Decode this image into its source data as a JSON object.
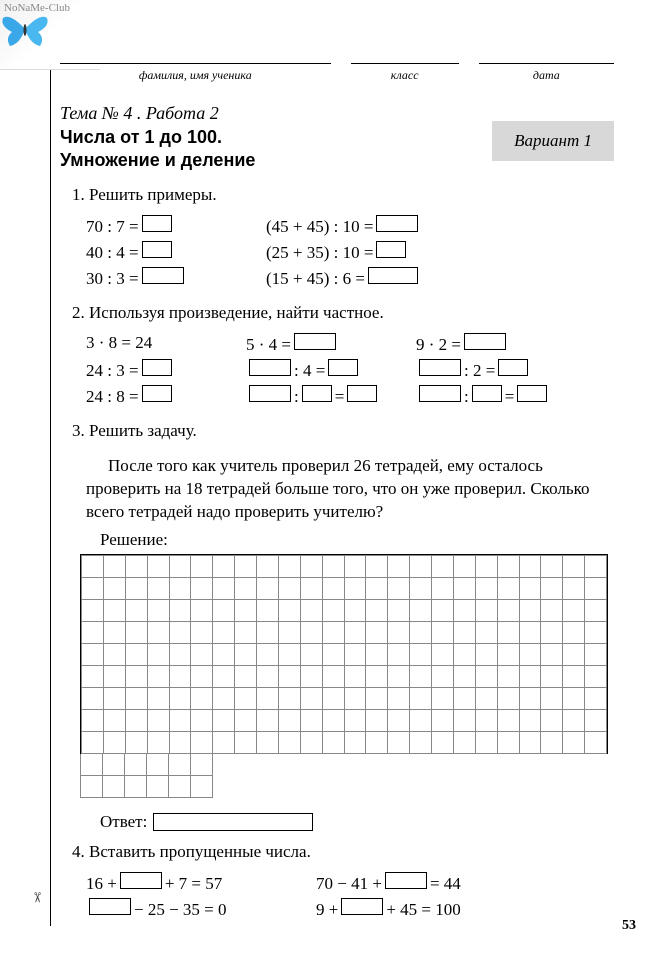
{
  "watermark": "NoNaMe-Club",
  "header": {
    "name_label": "фамилия, имя ученика",
    "class_label": "класс",
    "date_label": "дата"
  },
  "topic": {
    "theme": "Тема № 4 . Работа 2",
    "title_line1": "Числа от 1 до 100.",
    "title_line2": "Умножение и деление",
    "variant": "Вариант 1"
  },
  "task1": {
    "title": "1. Решить примеры.",
    "left": [
      "70 : 7 =",
      "40 : 4 =",
      "30 : 3 ="
    ],
    "right": [
      "(45 + 45) : 10 =",
      "(25 + 35) : 10 =",
      "(15 + 45) : 6 ="
    ]
  },
  "task2": {
    "title": "2. Используя произведение, найти частное.",
    "c1": {
      "a": "3 · 8 = 24",
      "b": "24 : 3 =",
      "c": "24 : 8 ="
    },
    "c2": {
      "a": "5 · 4 =",
      "b_mid": " : 4 =",
      "c_mid": " : "
    },
    "c3": {
      "a": "9 · 2 =",
      "b_mid": " : 2 =",
      "c_mid": " : "
    }
  },
  "task3": {
    "title": "3. Решить задачу.",
    "story": "После того как учитель проверил 26 тетрадей, ему осталось проверить на 18 тетрадей больше того, что он уже проверил. Сколько всего тетрадей надо проверить учителю?",
    "solution_label": "Решение:",
    "answer_label": "Ответ:",
    "grid": {
      "cols": 24,
      "rows_full": 9,
      "rows_tail": 2,
      "tail_cols": 6
    }
  },
  "task4": {
    "title": "4. Вставить пропущенные числа.",
    "r1": {
      "left_a": "16 +",
      "left_b": "+ 7 = 57",
      "right_a": "70 − 41 +",
      "right_b": "= 44"
    },
    "r2": {
      "left_a": "",
      "left_b": "− 25 − 35 = 0",
      "right_a": "9 +",
      "right_b": "+ 45 = 100"
    }
  },
  "page_number": "53",
  "colors": {
    "variant_bg": "#d8d8d8",
    "grid_border": "#888888",
    "text": "#000000"
  }
}
